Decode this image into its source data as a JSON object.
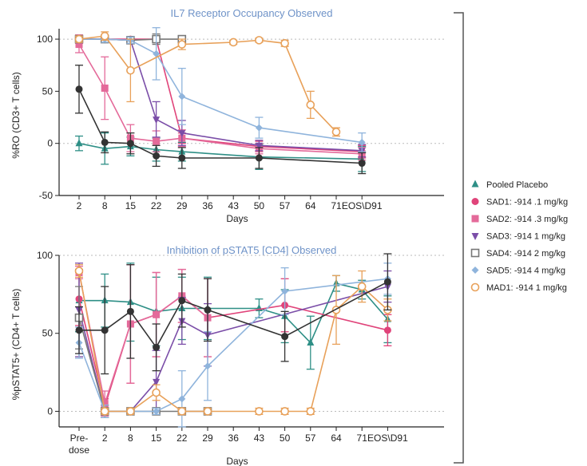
{
  "chart_data": [
    {
      "type": "line",
      "title": "IL7 Receptor Occupancy Observed",
      "xlabel": "Days",
      "ylabel": "%RO (CD3+ T cells)",
      "categories": [
        "2",
        "8",
        "15",
        "22",
        "29",
        "36",
        "43",
        "50",
        "57",
        "64",
        "71",
        "EOS\\D91"
      ],
      "ylim": [
        -50,
        110
      ],
      "yticks": [
        -50,
        0,
        50,
        100
      ],
      "reference_lines": [
        0,
        100
      ],
      "series": [
        {
          "name": "Pooled Placebo",
          "color": "#2e8f86",
          "marker": "triangle",
          "points": [
            [
              0,
              0,
              7
            ],
            [
              1,
              -5,
              15
            ],
            [
              2,
              -3,
              9
            ],
            [
              3,
              -6,
              11
            ],
            [
              4,
              -8,
              9
            ],
            [
              7,
              -13,
              12
            ],
            [
              11,
              -15,
              12
            ]
          ]
        },
        {
          "name": "SAD1: -914 .1 mg/kg",
          "color": "#e0447a",
          "marker": "circle",
          "points": [
            [
              0,
              100,
              4
            ],
            [
              1,
              100,
              3
            ],
            [
              2,
              100,
              2
            ],
            [
              3,
              100,
              3
            ],
            [
              4,
              5,
              5
            ],
            [
              7,
              -3,
              5
            ],
            [
              11,
              -8,
              6
            ]
          ]
        },
        {
          "name": "SAD2: -914 .3 mg/kg",
          "color": "#e46a9a",
          "marker": "square",
          "points": [
            [
              0,
              95,
              8
            ],
            [
              1,
              53,
              30
            ],
            [
              2,
              5,
              13
            ],
            [
              3,
              2,
              10
            ],
            [
              4,
              5,
              8
            ],
            [
              7,
              -5,
              5
            ],
            [
              11,
              -10,
              6
            ]
          ]
        },
        {
          "name": "SAD3: -914  1 mg/kg",
          "color": "#7b4ea8",
          "marker": "triangle-down",
          "points": [
            [
              0,
              100,
              3
            ],
            [
              1,
              100,
              3
            ],
            [
              2,
              99,
              3
            ],
            [
              3,
              23,
              17
            ],
            [
              4,
              10,
              12
            ],
            [
              7,
              -2,
              5
            ],
            [
              11,
              -7,
              6
            ]
          ]
        },
        {
          "name": "SAD4: -914  2 mg/kg",
          "color": "#777777",
          "marker": "open-square",
          "points": [
            [
              0,
              100,
              3
            ],
            [
              1,
              100,
              3
            ],
            [
              2,
              99,
              3
            ],
            [
              3,
              100,
              5
            ],
            [
              4,
              100,
              3
            ]
          ]
        },
        {
          "name": "SAD5: -914  4 mg/kg",
          "color": "#8fb4dc",
          "marker": "diamond",
          "points": [
            [
              0,
              100,
              3
            ],
            [
              1,
              100,
              3
            ],
            [
              2,
              99,
              3
            ],
            [
              3,
              86,
              25
            ],
            [
              4,
              45,
              27
            ],
            [
              7,
              15,
              10
            ],
            [
              11,
              1,
              9
            ]
          ]
        },
        {
          "name": "MAD1: -914 1 mg/kg",
          "color": "#e8a15a",
          "marker": "open-circle",
          "points": [
            [
              0,
              100,
              3
            ],
            [
              1,
              103,
              4
            ],
            [
              2,
              70,
              30
            ],
            [
              4,
              95,
              5
            ],
            [
              6,
              97,
              2
            ],
            [
              7,
              99,
              2
            ],
            [
              8,
              96,
              3
            ],
            [
              9,
              37,
              13
            ],
            [
              10,
              11,
              4
            ]
          ]
        },
        {
          "name": "",
          "color": "#333333",
          "marker": "circle",
          "points": [
            [
              0,
              52,
              23
            ],
            [
              1,
              1,
              10
            ],
            [
              2,
              0,
              10
            ],
            [
              3,
              -12,
              10
            ],
            [
              4,
              -14,
              10
            ],
            [
              7,
              -14,
              10
            ],
            [
              11,
              -19,
              10
            ]
          ]
        }
      ]
    },
    {
      "type": "line",
      "title": "Inhibition of pSTAT5 [CD4] Observed",
      "xlabel": "Days",
      "ylabel": "%pSTAT5+ (CD4+ T cells)",
      "categories": [
        "Pre-dose",
        "2",
        "8",
        "15",
        "22",
        "29",
        "36",
        "43",
        "50",
        "57",
        "64",
        "71",
        "EOS\\D91"
      ],
      "ylim": [
        -10,
        100
      ],
      "yticks": [
        0,
        50,
        100
      ],
      "reference_lines": [
        0,
        100
      ],
      "series": [
        {
          "name": "Pooled Placebo",
          "color": "#2e8f86",
          "marker": "triangle",
          "points": [
            [
              0,
              71,
              20
            ],
            [
              1,
              71,
              17
            ],
            [
              2,
              70,
              25
            ],
            [
              3,
              64,
              22
            ],
            [
              4,
              66,
              20
            ],
            [
              5,
              66,
              20
            ],
            [
              7,
              66,
              6
            ],
            [
              8,
              61,
              17
            ],
            [
              9,
              44,
              17
            ],
            [
              10,
              82,
              5
            ],
            [
              11,
              78,
              6
            ],
            [
              12,
              59,
              15
            ]
          ]
        },
        {
          "name": "SAD1: -914 .1 mg/kg",
          "color": "#e0447a",
          "marker": "circle",
          "points": [
            [
              0,
              72,
              17
            ],
            [
              1,
              3,
              5
            ],
            [
              2,
              56,
              38
            ],
            [
              3,
              62,
              27
            ],
            [
              4,
              74,
              17
            ],
            [
              5,
              60,
              25
            ],
            [
              8,
              68,
              17
            ],
            [
              12,
              52,
              10
            ]
          ]
        },
        {
          "name": "SAD2: -914 .3 mg/kg",
          "color": "#e46a9a",
          "marker": "square",
          "points": [
            [
              0,
              89,
              4
            ],
            [
              1,
              5,
              8
            ],
            [
              2,
              56,
              38
            ],
            [
              3,
              62,
              27
            ],
            [
              4,
              74,
              17
            ],
            [
              5,
              60,
              25
            ]
          ]
        },
        {
          "name": "SAD3: -914  1 mg/kg",
          "color": "#7b4ea8",
          "marker": "triangle-down",
          "points": [
            [
              0,
              65,
              30
            ],
            [
              1,
              0,
              4
            ],
            [
              2,
              0,
              2
            ],
            [
              3,
              19,
              20
            ],
            [
              4,
              58,
              15
            ],
            [
              5,
              49,
              20
            ],
            [
              12,
              80,
              10
            ]
          ]
        },
        {
          "name": "SAD4: -914  2 mg/kg",
          "color": "#777777",
          "marker": "open-square",
          "points": [
            [
              0,
              60,
              20
            ],
            [
              1,
              0,
              4
            ],
            [
              2,
              0,
              2
            ],
            [
              3,
              0,
              2
            ],
            [
              4,
              0,
              2
            ],
            [
              5,
              0,
              2
            ]
          ]
        },
        {
          "name": "SAD5: -914  4 mg/kg",
          "color": "#8fb4dc",
          "marker": "diamond",
          "points": [
            [
              0,
              44,
              10
            ],
            [
              1,
              0,
              4
            ],
            [
              2,
              0,
              2
            ],
            [
              3,
              0,
              2
            ],
            [
              4,
              8,
              18
            ],
            [
              5,
              29,
              22
            ],
            [
              8,
              77,
              15
            ],
            [
              12,
              85,
              10
            ]
          ]
        },
        {
          "name": "MAD1: -914 1 mg/kg",
          "color": "#e8a15a",
          "marker": "open-circle",
          "points": [
            [
              0,
              90,
              4
            ],
            [
              1,
              0,
              2
            ],
            [
              2,
              0,
              2
            ],
            [
              3,
              12,
              5
            ],
            [
              4,
              0,
              2
            ],
            [
              5,
              0,
              2
            ],
            [
              7,
              0,
              2
            ],
            [
              8,
              0,
              2
            ],
            [
              9,
              0,
              2
            ],
            [
              10,
              65,
              22
            ],
            [
              11,
              80,
              10
            ],
            [
              12,
              65,
              7
            ]
          ]
        },
        {
          "name": "",
          "color": "#333333",
          "marker": "circle",
          "points": [
            [
              0,
              52,
              15
            ],
            [
              1,
              52,
              28
            ],
            [
              2,
              64,
              30
            ],
            [
              3,
              41,
              15
            ],
            [
              4,
              71,
              17
            ],
            [
              5,
              65,
              20
            ],
            [
              8,
              48,
              16
            ],
            [
              12,
              83,
              18
            ]
          ]
        }
      ]
    }
  ],
  "legend": {
    "placement": "right",
    "items": [
      {
        "label": "Pooled Placebo",
        "color": "#2e8f86",
        "marker": "triangle"
      },
      {
        "label": "SAD1: -914 .1 mg/kg",
        "color": "#e0447a",
        "marker": "circle"
      },
      {
        "label": "SAD2: -914 .3 mg/kg",
        "color": "#e46a9a",
        "marker": "square"
      },
      {
        "label": "SAD3: -914  1 mg/kg",
        "color": "#7b4ea8",
        "marker": "triangle-down"
      },
      {
        "label": "SAD4: -914  2 mg/kg",
        "color": "#777777",
        "marker": "open-square"
      },
      {
        "label": "SAD5: -914  4 mg/kg",
        "color": "#8fb4dc",
        "marker": "diamond"
      },
      {
        "label": "MAD1: -914 1 mg/kg",
        "color": "#e8a15a",
        "marker": "open-circle"
      }
    ]
  }
}
